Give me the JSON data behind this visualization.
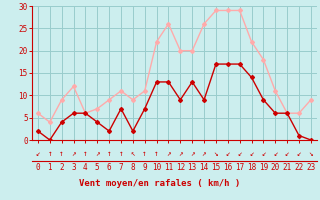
{
  "x": [
    0,
    1,
    2,
    3,
    4,
    5,
    6,
    7,
    8,
    9,
    10,
    11,
    12,
    13,
    14,
    15,
    16,
    17,
    18,
    19,
    20,
    21,
    22,
    23
  ],
  "wind_mean": [
    2,
    0,
    4,
    6,
    6,
    4,
    2,
    7,
    2,
    7,
    13,
    13,
    9,
    13,
    9,
    17,
    17,
    17,
    14,
    9,
    6,
    6,
    1,
    0
  ],
  "wind_gust": [
    6,
    4,
    9,
    12,
    6,
    7,
    9,
    11,
    9,
    11,
    22,
    26,
    20,
    20,
    26,
    29,
    29,
    29,
    22,
    18,
    11,
    6,
    6,
    9
  ],
  "mean_color": "#cc0000",
  "gust_color": "#ffaaaa",
  "background_color": "#cceeee",
  "grid_color": "#99cccc",
  "xlabel": "Vent moyen/en rafales ( km/h )",
  "xlabel_color": "#cc0000",
  "ylim": [
    0,
    30
  ],
  "yticks": [
    0,
    5,
    10,
    15,
    20,
    25,
    30
  ],
  "marker": "D",
  "marker_size": 2,
  "line_width": 1.0,
  "arrows": [
    "↙",
    "↑",
    "↑",
    "↗",
    "↑",
    "↗",
    "↑",
    "↑",
    "↖",
    "↑",
    "↑",
    "↗",
    "↗",
    "↗",
    "↗",
    "↘",
    "↙",
    "↙",
    "↙",
    "↙",
    "↙",
    "↙",
    "↙",
    "↘"
  ]
}
